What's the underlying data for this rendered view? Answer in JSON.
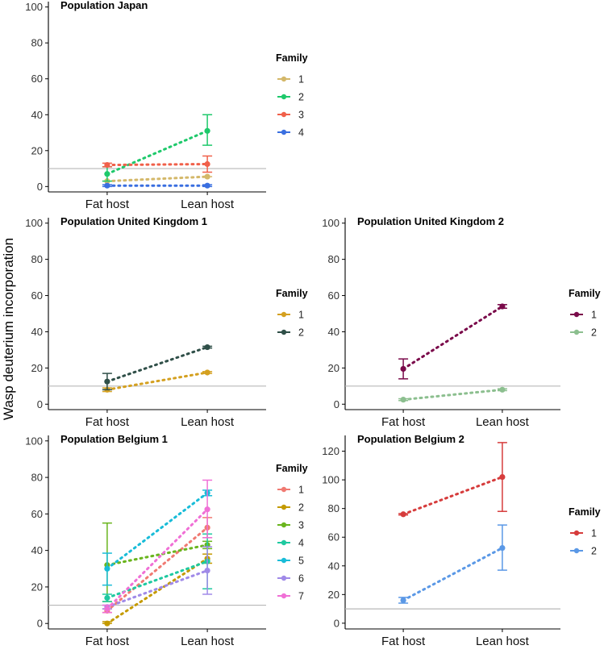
{
  "figure": {
    "ylabel": "Wasp deuterium incorporation",
    "reference_line_value": 10
  },
  "chart_data": [
    {
      "type": "line",
      "title": "Population Japan",
      "categories": [
        "Fat host",
        "Lean host"
      ],
      "ylim": [
        -3,
        103
      ],
      "yticks": [
        0,
        20,
        40,
        60,
        80,
        100
      ],
      "legend_title": "Family",
      "series": [
        {
          "name": "1",
          "color": "#d4b86a",
          "values": [
            3,
            5.5
          ],
          "err_low": [
            3,
            5.5
          ],
          "err_high": [
            3,
            6
          ]
        },
        {
          "name": "2",
          "color": "#1ec96b",
          "values": [
            7,
            31
          ],
          "err_low": [
            3,
            23
          ],
          "err_high": [
            11,
            40
          ]
        },
        {
          "name": "3",
          "color": "#f0604a",
          "values": [
            12,
            12.5
          ],
          "err_low": [
            11,
            8
          ],
          "err_high": [
            13,
            17
          ]
        },
        {
          "name": "4",
          "color": "#3a6fe0",
          "values": [
            0.5,
            0.5
          ],
          "err_low": [
            0,
            0
          ],
          "err_high": [
            1,
            1
          ]
        }
      ]
    },
    {
      "type": "line",
      "title": "Population United Kingdom 1",
      "categories": [
        "Fat host",
        "Lean host"
      ],
      "ylim": [
        -3,
        103
      ],
      "yticks": [
        0,
        20,
        40,
        60,
        80,
        100
      ],
      "legend_title": "Family",
      "series": [
        {
          "name": "1",
          "color": "#d4a020",
          "values": [
            8,
            17.5
          ],
          "err_low": [
            7,
            17
          ],
          "err_high": [
            9,
            18
          ]
        },
        {
          "name": "2",
          "color": "#2f4f48",
          "values": [
            12.5,
            31.5
          ],
          "err_low": [
            8,
            31
          ],
          "err_high": [
            17,
            32
          ]
        }
      ]
    },
    {
      "type": "line",
      "title": "Population United Kingdom 2",
      "categories": [
        "Fat host",
        "Lean host"
      ],
      "ylim": [
        -3,
        103
      ],
      "yticks": [
        0,
        20,
        40,
        60,
        80,
        100
      ],
      "legend_title": "Family",
      "series": [
        {
          "name": "1",
          "color": "#7a0a4a",
          "values": [
            19.5,
            54
          ],
          "err_low": [
            14,
            53
          ],
          "err_high": [
            25,
            55
          ]
        },
        {
          "name": "2",
          "color": "#8cbf8f",
          "values": [
            2.5,
            8
          ],
          "err_low": [
            2,
            7.5
          ],
          "err_high": [
            3,
            8.5
          ]
        }
      ]
    },
    {
      "type": "line",
      "title": "Population Belgium 1",
      "categories": [
        "Fat host",
        "Lean host"
      ],
      "ylim": [
        -3,
        103
      ],
      "yticks": [
        0,
        20,
        40,
        60,
        80,
        100
      ],
      "legend_title": "Family",
      "series": [
        {
          "name": "1",
          "color": "#f07a72",
          "values": [
            7,
            52.5
          ],
          "err_low": [
            6,
            47
          ],
          "err_high": [
            8,
            58
          ]
        },
        {
          "name": "2",
          "color": "#c49a00",
          "values": [
            0,
            35.5
          ],
          "err_low": [
            0,
            33
          ],
          "err_high": [
            1,
            38
          ]
        },
        {
          "name": "3",
          "color": "#6ab51e",
          "values": [
            32,
            43
          ],
          "err_low": [
            12,
            41
          ],
          "err_high": [
            55,
            45
          ]
        },
        {
          "name": "4",
          "color": "#1ec9a0",
          "values": [
            14,
            34
          ],
          "err_low": [
            12,
            19
          ],
          "err_high": [
            16,
            49
          ]
        },
        {
          "name": "5",
          "color": "#18bcd8",
          "values": [
            30,
            71.5
          ],
          "err_low": [
            21,
            70
          ],
          "err_high": [
            38.5,
            73
          ]
        },
        {
          "name": "6",
          "color": "#a08ae8",
          "values": [
            9,
            29
          ],
          "err_low": [
            8,
            16
          ],
          "err_high": [
            10,
            42
          ]
        },
        {
          "name": "7",
          "color": "#f070d6",
          "values": [
            8,
            62.5
          ],
          "err_low": [
            6,
            47
          ],
          "err_high": [
            10,
            78.5
          ]
        }
      ]
    },
    {
      "type": "line",
      "title": "Population Belgium 2",
      "categories": [
        "Fat host",
        "Lean host"
      ],
      "ylim": [
        -4,
        131
      ],
      "yticks": [
        0,
        20,
        40,
        60,
        80,
        100,
        120
      ],
      "legend_title": "Family",
      "series": [
        {
          "name": "1",
          "color": "#d63c3c",
          "values": [
            76,
            102
          ],
          "err_low": [
            75.5,
            78
          ],
          "err_high": [
            76.5,
            126
          ]
        },
        {
          "name": "2",
          "color": "#5a98e6",
          "values": [
            16,
            52.5
          ],
          "err_low": [
            14,
            37
          ],
          "err_high": [
            18,
            68.5
          ]
        }
      ]
    }
  ]
}
